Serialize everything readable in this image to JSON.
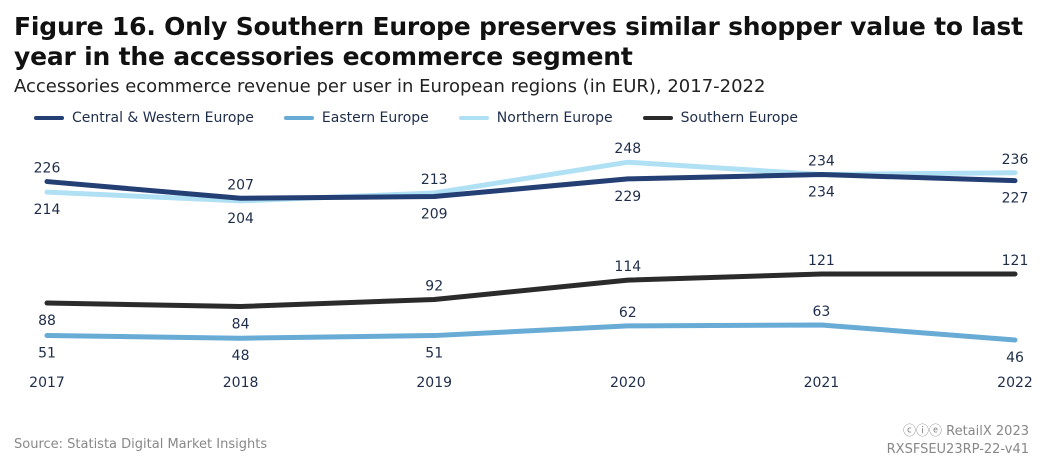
{
  "title": "Figure 16. Only Southern Europe preserves similar shopper value to last year in the accessories ecommerce segment",
  "subtitle": "Accessories ecommerce revenue per user in European regions (in EUR), 2017-2022",
  "footer": {
    "source": "Source: Statista Digital Market Insights",
    "copyright": "RetailX 2023",
    "code": "RXSFSEU23RP-22-v41",
    "license_icons": "cc-by-nd-icons"
  },
  "chart_data": {
    "type": "line",
    "title": "Accessories ecommerce revenue per user in European regions (in EUR), 2017-2022",
    "x": [
      "2017",
      "2018",
      "2019",
      "2020",
      "2021",
      "2022"
    ],
    "xlabel": "",
    "ylabel": "EUR",
    "legend_position": "top-left",
    "grid": false,
    "series": [
      {
        "name": "Central & Western Europe",
        "color": "#243f73",
        "values": [
          226,
          207,
          209,
          229,
          234,
          227
        ],
        "label_pos": [
          "above",
          "above",
          "below",
          "below",
          "below",
          "below"
        ]
      },
      {
        "name": "Eastern Europe",
        "color": "#68acd6",
        "values": [
          51,
          48,
          51,
          62,
          63,
          46
        ],
        "label_pos": [
          "below",
          "below",
          "below",
          "above",
          "above",
          "below"
        ]
      },
      {
        "name": "Northern Europe",
        "color": "#b0e0f4",
        "values": [
          214,
          204,
          213,
          248,
          234,
          236
        ],
        "label_pos": [
          "below",
          "below",
          "above",
          "above",
          "above",
          "above"
        ]
      },
      {
        "name": "Southern Europe",
        "color": "#2b2b2b",
        "values": [
          88,
          84,
          92,
          114,
          121,
          121
        ],
        "label_pos": [
          "below",
          "below",
          "above",
          "above",
          "above",
          "above"
        ]
      }
    ]
  }
}
